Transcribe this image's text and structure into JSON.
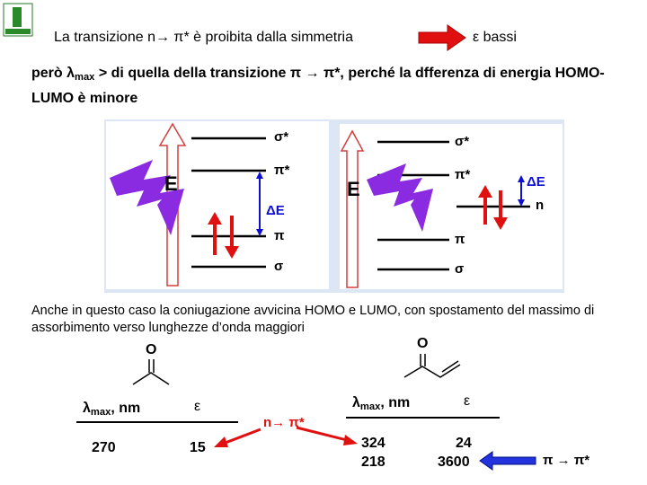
{
  "header": {
    "text": "La transizione n→ π* è proibita dalla simmetria",
    "result": "ε bassi"
  },
  "intro": {
    "prefix": "però λ",
    "subscript": "max",
    "text": " > di quella della transizione π → π*, perché la dfferenza di energia HOMO-LUMO è minore"
  },
  "diagrams": [
    {
      "levels": [
        "σ*",
        "π*",
        "π",
        "σ"
      ],
      "energy": "E",
      "gap": "ΔE"
    },
    {
      "levels": [
        "σ*",
        "π*",
        "n",
        "π",
        "σ"
      ],
      "energy": "E",
      "gap": "ΔE"
    }
  ],
  "paragraph": "Anche in questo caso la coniugazione avvicina HOMO e LUMO, con spostamento del massimo di assorbimento verso lunghezze d’onda maggiori",
  "compounds": [
    {
      "atom": "O",
      "lambda_symbol": "λ",
      "lambda_sub": "max",
      "lambda_unit": ", nm",
      "epsilon_symbol": "ε",
      "lambda": [
        270
      ],
      "epsilon": [
        15
      ]
    },
    {
      "atom": "O",
      "lambda_symbol": "λ",
      "lambda_sub": "max",
      "lambda_unit": ", nm",
      "epsilon_symbol": "ε",
      "lambda": [
        324,
        218
      ],
      "epsilon": [
        24,
        3600
      ]
    }
  ],
  "transitions": {
    "n_pi": "n→ π*",
    "pi_pi": "π → π*"
  }
}
